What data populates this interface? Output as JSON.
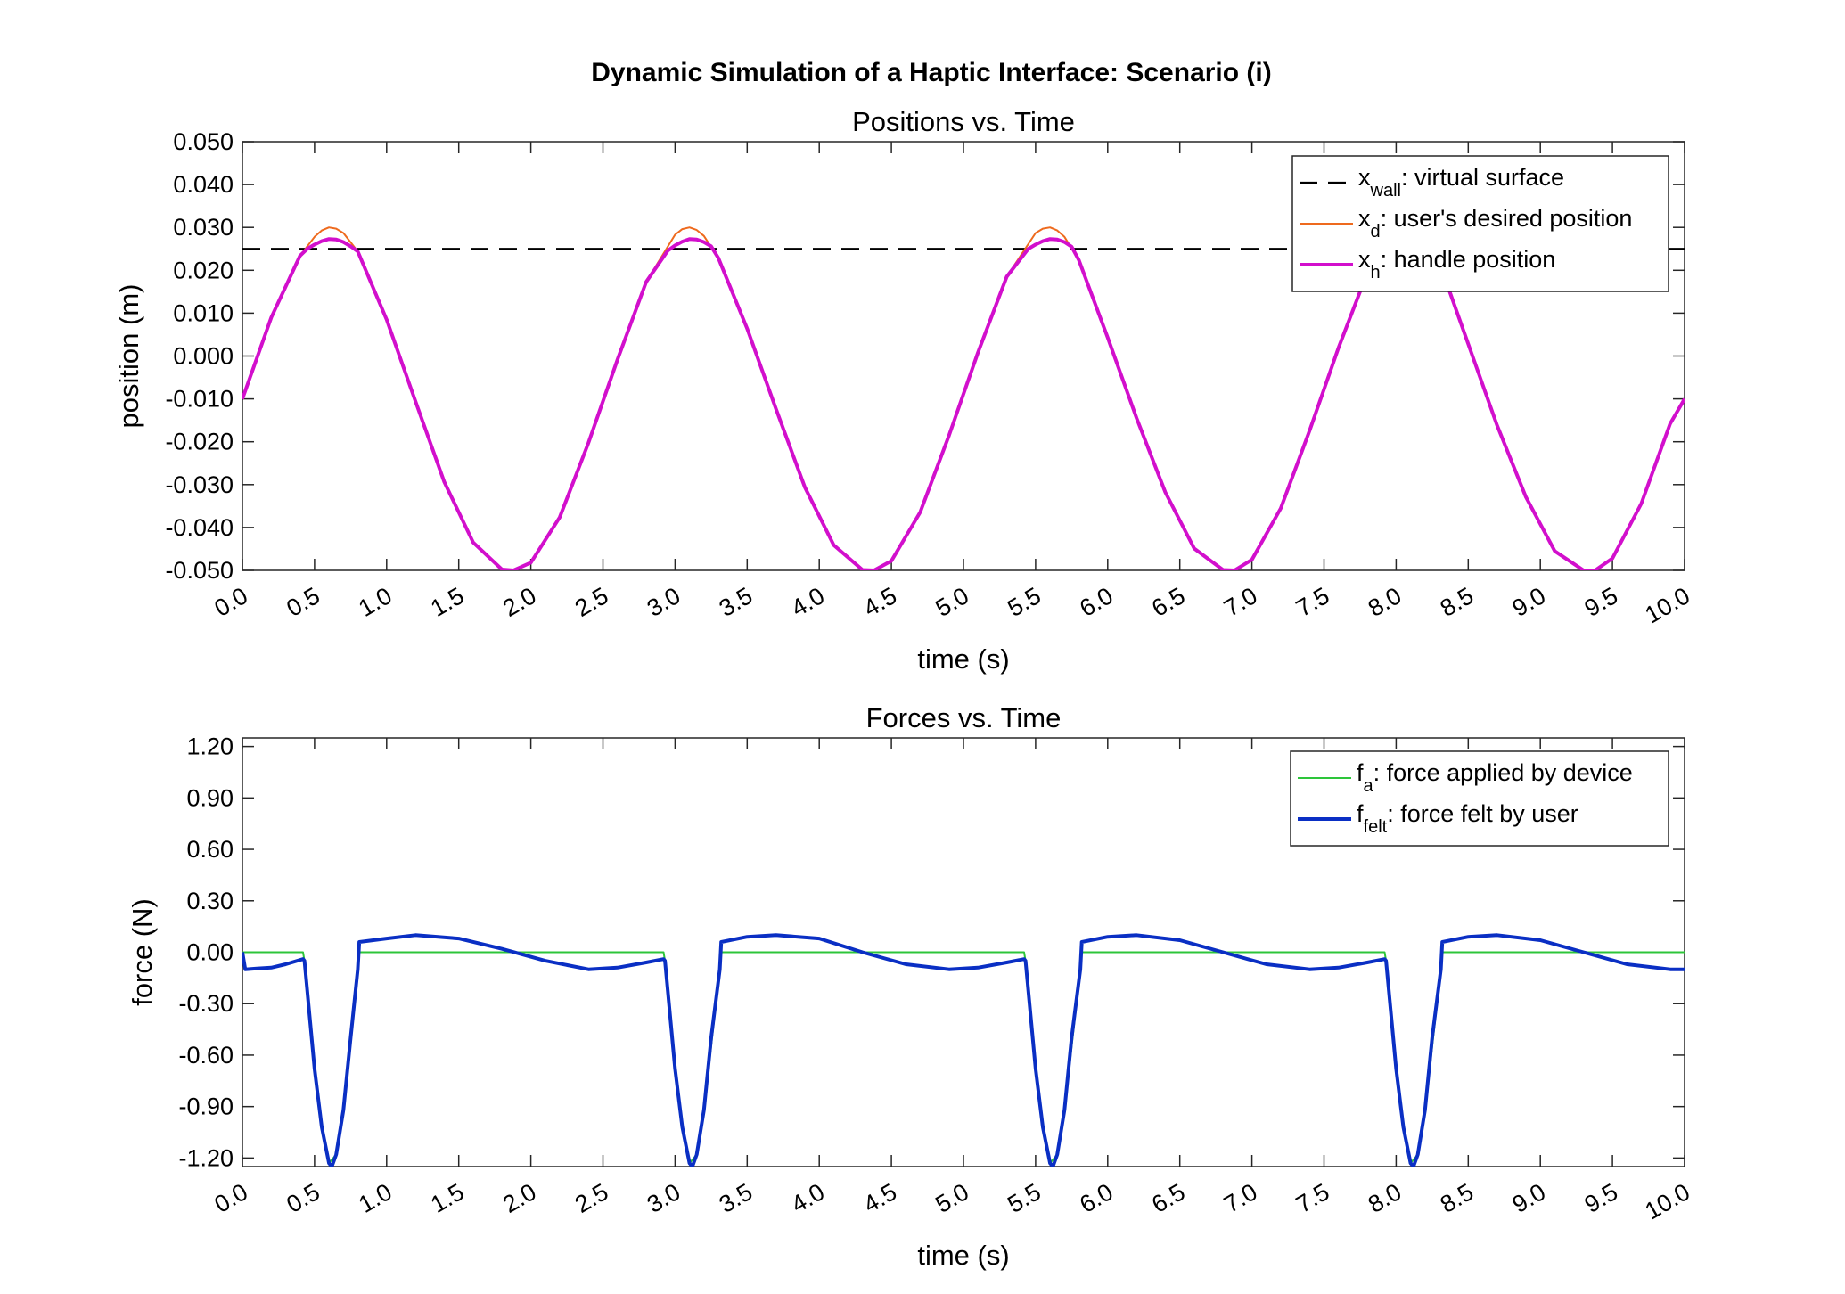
{
  "figure": {
    "suptitle": "Dynamic Simulation of a Haptic Interface: Scenario (i)"
  },
  "chart_data": [
    {
      "type": "line",
      "title": "Positions vs. Time",
      "xlabel": "time (s)",
      "ylabel": "position (m)",
      "xlim": [
        0,
        10
      ],
      "ylim": [
        -0.05,
        0.05
      ],
      "xticks": [
        "0.0",
        "0.5",
        "1.0",
        "1.5",
        "2.0",
        "2.5",
        "3.0",
        "3.5",
        "4.0",
        "4.5",
        "5.0",
        "5.5",
        "6.0",
        "6.5",
        "7.0",
        "7.5",
        "8.0",
        "8.5",
        "9.0",
        "9.5",
        "10.0"
      ],
      "yticks": [
        "0.050",
        "0.040",
        "0.030",
        "0.020",
        "0.010",
        "0.000",
        "-0.010",
        "-0.020",
        "-0.030",
        "-0.040",
        "-0.050"
      ],
      "grid": false,
      "legend_position": "top-right",
      "series": [
        {
          "name_main": "x",
          "name_sub": "wall",
          "name_rest": ": virtual surface",
          "color": "#000000",
          "style": "dashed",
          "x": [
            0,
            10
          ],
          "y": [
            0.025,
            0.025
          ]
        },
        {
          "name_main": "x",
          "name_sub": "d",
          "name_rest": ": user's desired position",
          "color": "#EE6A1E",
          "style": "solid-thin",
          "x": [
            0.0,
            0.2,
            0.4,
            0.5,
            0.55,
            0.6,
            0.65,
            0.7,
            0.8,
            1.0,
            1.2,
            1.4,
            1.6,
            1.8,
            1.88,
            2.0,
            2.2,
            2.4,
            2.6,
            2.8,
            3.0,
            3.05,
            3.1,
            3.15,
            3.2,
            3.3,
            3.5,
            3.7,
            3.9,
            4.1,
            4.3,
            4.38,
            4.5,
            4.7,
            4.9,
            5.1,
            5.3,
            5.5,
            5.55,
            5.6,
            5.65,
            5.7,
            5.8,
            6.0,
            6.2,
            6.4,
            6.6,
            6.8,
            6.88,
            7.0,
            7.2,
            7.4,
            7.6,
            7.8,
            8.0,
            8.05,
            8.1,
            8.15,
            8.2,
            8.3,
            8.5,
            8.7,
            8.9,
            9.1,
            9.3,
            9.38,
            9.5,
            9.7,
            9.9,
            10.0
          ],
          "y": [
            -0.01,
            0.009,
            0.0234,
            0.0278,
            0.0293,
            0.03,
            0.0297,
            0.0287,
            0.0244,
            0.0085,
            -0.0106,
            -0.0294,
            -0.0435,
            -0.0498,
            -0.05,
            -0.0482,
            -0.0376,
            -0.0202,
            -0.0009,
            0.0173,
            0.0283,
            0.0296,
            0.03,
            0.0294,
            0.028,
            0.0229,
            0.0064,
            -0.0124,
            -0.0306,
            -0.0441,
            -0.0499,
            -0.05,
            -0.0478,
            -0.0364,
            -0.0185,
            0.0008,
            0.0185,
            0.0287,
            0.0297,
            0.03,
            0.0293,
            0.0278,
            0.0224,
            0.0043,
            -0.0145,
            -0.0318,
            -0.0449,
            -0.0499,
            -0.05,
            -0.0475,
            -0.0355,
            -0.0174,
            0.0019,
            0.0194,
            0.0292,
            0.0299,
            0.03,
            0.0292,
            0.0276,
            0.0218,
            0.0028,
            -0.0162,
            -0.0329,
            -0.0455,
            -0.05,
            -0.05,
            -0.0472,
            -0.0344,
            -0.0158,
            -0.01
          ]
        },
        {
          "name_main": "x",
          "name_sub": "h",
          "name_rest": ": handle position",
          "color": "#D20FCC",
          "style": "solid-thick",
          "x": [
            0.0,
            0.2,
            0.4,
            0.45,
            0.5,
            0.55,
            0.6,
            0.65,
            0.7,
            0.75,
            0.8,
            1.0,
            1.2,
            1.4,
            1.6,
            1.8,
            1.88,
            2.0,
            2.2,
            2.4,
            2.6,
            2.8,
            2.95,
            3.0,
            3.05,
            3.1,
            3.15,
            3.2,
            3.25,
            3.3,
            3.5,
            3.7,
            3.9,
            4.1,
            4.3,
            4.38,
            4.5,
            4.7,
            4.9,
            5.1,
            5.3,
            5.45,
            5.5,
            5.55,
            5.6,
            5.65,
            5.7,
            5.75,
            5.8,
            6.0,
            6.2,
            6.4,
            6.6,
            6.8,
            6.88,
            7.0,
            7.2,
            7.4,
            7.6,
            7.8,
            7.95,
            8.0,
            8.05,
            8.1,
            8.15,
            8.2,
            8.25,
            8.3,
            8.5,
            8.7,
            8.9,
            9.1,
            9.3,
            9.38,
            9.5,
            9.7,
            9.9,
            10.0
          ],
          "y": [
            -0.01,
            0.009,
            0.0234,
            0.025,
            0.026,
            0.0268,
            0.0273,
            0.0272,
            0.0266,
            0.0256,
            0.0244,
            0.0085,
            -0.0106,
            -0.0294,
            -0.0435,
            -0.0498,
            -0.05,
            -0.0482,
            -0.0376,
            -0.0202,
            -0.0009,
            0.0173,
            0.0246,
            0.0258,
            0.0267,
            0.0273,
            0.0272,
            0.0266,
            0.0256,
            0.0229,
            0.0064,
            -0.0124,
            -0.0306,
            -0.0441,
            -0.0499,
            -0.05,
            -0.0478,
            -0.0364,
            -0.0185,
            0.0008,
            0.0185,
            0.025,
            0.026,
            0.0268,
            0.0273,
            0.0272,
            0.0266,
            0.0255,
            0.0224,
            0.0043,
            -0.0145,
            -0.0318,
            -0.0449,
            -0.0499,
            -0.05,
            -0.0475,
            -0.0355,
            -0.0174,
            0.0019,
            0.0194,
            0.0252,
            0.0262,
            0.0269,
            0.0273,
            0.0272,
            0.0265,
            0.0254,
            0.0218,
            0.0028,
            -0.0162,
            -0.0329,
            -0.0455,
            -0.05,
            -0.05,
            -0.0472,
            -0.0344,
            -0.0158,
            -0.01
          ]
        }
      ]
    },
    {
      "type": "line",
      "title": "Forces vs. Time",
      "xlabel": "time (s)",
      "ylabel": "force (N)",
      "xlim": [
        0,
        10
      ],
      "ylim": [
        -1.25,
        1.25
      ],
      "xticks": [
        "0.0",
        "0.5",
        "1.0",
        "1.5",
        "2.0",
        "2.5",
        "3.0",
        "3.5",
        "4.0",
        "4.5",
        "5.0",
        "5.5",
        "6.0",
        "6.5",
        "7.0",
        "7.5",
        "8.0",
        "8.5",
        "9.0",
        "9.5",
        "10.0"
      ],
      "yticks": [
        "1.20",
        "0.90",
        "0.60",
        "0.30",
        "0.00",
        "-0.30",
        "-0.60",
        "-0.90",
        "-1.20"
      ],
      "ytick_values": [
        1.2,
        0.9,
        0.6,
        0.3,
        0.0,
        -0.3,
        -0.6,
        -0.9,
        -1.2
      ],
      "grid": false,
      "legend_position": "top-right",
      "series": [
        {
          "name_main": "f",
          "name_sub": "a",
          "name_rest": ": force applied by device",
          "color": "#2DC53A",
          "style": "solid-thin",
          "x": [
            0.0,
            0.42,
            0.43,
            0.5,
            0.55,
            0.6,
            0.65,
            0.7,
            0.8,
            0.81,
            2.92,
            2.93,
            3.0,
            3.05,
            3.1,
            3.15,
            3.2,
            3.31,
            3.32,
            5.42,
            5.43,
            5.5,
            5.55,
            5.6,
            5.65,
            5.7,
            5.81,
            5.82,
            7.92,
            7.93,
            8.0,
            8.05,
            8.1,
            8.15,
            8.2,
            8.31,
            8.32,
            10.0
          ],
          "y": [
            0.0,
            0.0,
            -0.05,
            -0.68,
            -1.02,
            -1.23,
            -1.18,
            -0.92,
            -0.1,
            0.0,
            0.0,
            -0.05,
            -0.68,
            -1.02,
            -1.23,
            -1.18,
            -0.92,
            -0.1,
            0.0,
            0.0,
            -0.05,
            -0.68,
            -1.02,
            -1.23,
            -1.18,
            -0.92,
            -0.1,
            0.0,
            0.0,
            -0.05,
            -0.68,
            -1.02,
            -1.23,
            -1.18,
            -0.92,
            -0.1,
            0.0,
            0.0
          ]
        },
        {
          "name_main": "f",
          "name_sub": "felt",
          "name_rest": ": force felt by user",
          "color": "#0A2FC4",
          "style": "solid-thick",
          "x": [
            0.0,
            0.02,
            0.1,
            0.2,
            0.3,
            0.42,
            0.43,
            0.5,
            0.55,
            0.6,
            0.62,
            0.65,
            0.7,
            0.75,
            0.8,
            0.81,
            1.0,
            1.2,
            1.5,
            1.8,
            2.1,
            2.4,
            2.6,
            2.8,
            2.92,
            2.93,
            3.0,
            3.05,
            3.1,
            3.12,
            3.15,
            3.2,
            3.25,
            3.31,
            3.32,
            3.5,
            3.7,
            4.0,
            4.3,
            4.6,
            4.9,
            5.1,
            5.3,
            5.42,
            5.43,
            5.5,
            5.55,
            5.6,
            5.62,
            5.65,
            5.7,
            5.75,
            5.81,
            5.82,
            6.0,
            6.2,
            6.5,
            6.8,
            7.1,
            7.4,
            7.6,
            7.8,
            7.92,
            7.93,
            8.0,
            8.05,
            8.1,
            8.12,
            8.15,
            8.2,
            8.25,
            8.31,
            8.32,
            8.5,
            8.7,
            9.0,
            9.3,
            9.6,
            9.9,
            10.0
          ],
          "y": [
            0.0,
            -0.1,
            -0.095,
            -0.09,
            -0.07,
            -0.04,
            -0.05,
            -0.68,
            -1.02,
            -1.23,
            -1.25,
            -1.18,
            -0.92,
            -0.5,
            -0.1,
            0.06,
            0.08,
            0.1,
            0.08,
            0.02,
            -0.05,
            -0.1,
            -0.09,
            -0.06,
            -0.04,
            -0.05,
            -0.68,
            -1.02,
            -1.23,
            -1.25,
            -1.18,
            -0.92,
            -0.5,
            -0.1,
            0.06,
            0.09,
            0.1,
            0.08,
            0.0,
            -0.07,
            -0.1,
            -0.09,
            -0.06,
            -0.04,
            -0.05,
            -0.68,
            -1.02,
            -1.23,
            -1.25,
            -1.18,
            -0.92,
            -0.5,
            -0.1,
            0.06,
            0.09,
            0.1,
            0.07,
            0.0,
            -0.07,
            -0.1,
            -0.09,
            -0.06,
            -0.04,
            -0.05,
            -0.68,
            -1.02,
            -1.23,
            -1.25,
            -1.18,
            -0.92,
            -0.5,
            -0.1,
            0.06,
            0.09,
            0.1,
            0.07,
            0.0,
            -0.07,
            -0.1,
            -0.1
          ]
        }
      ]
    }
  ]
}
